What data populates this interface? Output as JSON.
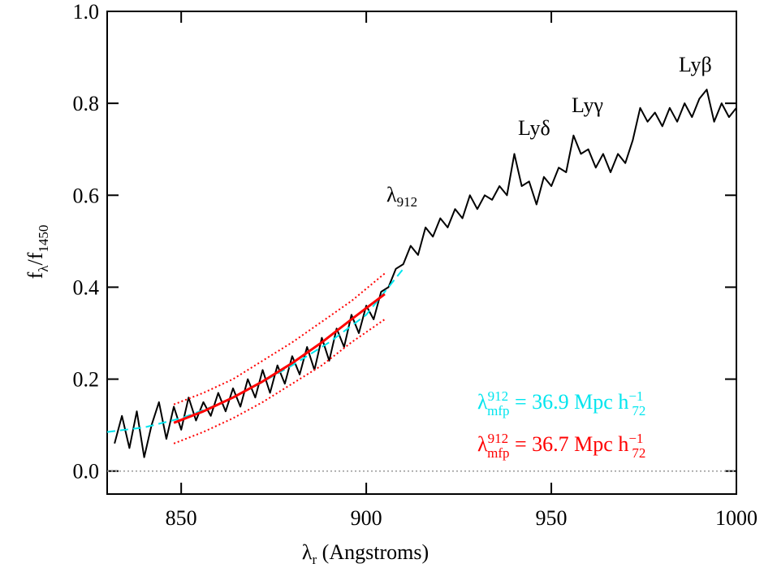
{
  "chart_data": {
    "type": "line",
    "xlabel": [
      "λ",
      "r",
      " (Angstroms)"
    ],
    "ylabel": [
      "f",
      "λ",
      "/f",
      "1450"
    ],
    "xlim": [
      830,
      1000
    ],
    "ylim": [
      -0.05,
      1.0
    ],
    "xticks": [
      850,
      900,
      950,
      1000
    ],
    "yticks": [
      {
        "value": 0,
        "label": "0.0"
      },
      0.2,
      0.4,
      0.6,
      0.8,
      {
        "value": 1,
        "label": "1.0"
      }
    ],
    "reference_line": {
      "value": 0,
      "color": "#999999",
      "style": "dotted"
    },
    "series": [
      {
        "color": "#000000",
        "style": "solid",
        "width": 2,
        "x": [
          832,
          834,
          836,
          838,
          840,
          842,
          844,
          846,
          848,
          850,
          852,
          854,
          856,
          858,
          860,
          862,
          864,
          866,
          868,
          870,
          872,
          874,
          876,
          878,
          880,
          882,
          884,
          886,
          888,
          890,
          892,
          894,
          896,
          898,
          900,
          902,
          904,
          906,
          908,
          910,
          912,
          914,
          916,
          918,
          920,
          922,
          924,
          926,
          928,
          930,
          932,
          934,
          936,
          938,
          940,
          942,
          944,
          946,
          948,
          950,
          952,
          954,
          956,
          958,
          960,
          962,
          964,
          966,
          968,
          970,
          972,
          974,
          976,
          978,
          980,
          982,
          984,
          986,
          988,
          990,
          992,
          994,
          996,
          998,
          1000
        ],
        "values": [
          0.06,
          0.12,
          0.05,
          0.13,
          0.03,
          0.1,
          0.15,
          0.07,
          0.14,
          0.09,
          0.16,
          0.11,
          0.15,
          0.12,
          0.17,
          0.13,
          0.18,
          0.14,
          0.2,
          0.16,
          0.22,
          0.17,
          0.23,
          0.19,
          0.25,
          0.21,
          0.27,
          0.22,
          0.29,
          0.24,
          0.31,
          0.27,
          0.34,
          0.3,
          0.36,
          0.33,
          0.39,
          0.4,
          0.44,
          0.45,
          0.49,
          0.47,
          0.53,
          0.51,
          0.55,
          0.53,
          0.57,
          0.55,
          0.6,
          0.57,
          0.6,
          0.59,
          0.62,
          0.6,
          0.69,
          0.62,
          0.63,
          0.58,
          0.64,
          0.62,
          0.66,
          0.65,
          0.73,
          0.69,
          0.7,
          0.66,
          0.69,
          0.65,
          0.69,
          0.67,
          0.72,
          0.79,
          0.76,
          0.78,
          0.75,
          0.79,
          0.76,
          0.8,
          0.77,
          0.81,
          0.83,
          0.76,
          0.8,
          0.77,
          0.79
        ]
      },
      {
        "color": "#00e5ee",
        "style": "dashed",
        "width": 2,
        "x": [
          830,
          840,
          850,
          860,
          870,
          880,
          890,
          900,
          910
        ],
        "values": [
          0.085,
          0.095,
          0.115,
          0.145,
          0.185,
          0.23,
          0.28,
          0.34,
          0.44
        ]
      },
      {
        "color": "#ff0000",
        "style": "solid",
        "width": 3,
        "x": [
          848,
          856,
          864,
          872,
          880,
          888,
          896,
          905
        ],
        "values": [
          0.105,
          0.13,
          0.16,
          0.195,
          0.235,
          0.28,
          0.33,
          0.385
        ]
      },
      {
        "color": "#ff0000",
        "style": "dotted",
        "width": 2,
        "x": [
          848,
          856,
          864,
          872,
          880,
          888,
          896,
          905
        ],
        "values": [
          0.145,
          0.17,
          0.2,
          0.24,
          0.28,
          0.325,
          0.37,
          0.43
        ]
      },
      {
        "color": "#ff0000",
        "style": "dotted",
        "width": 2,
        "x": [
          848,
          856,
          864,
          872,
          880,
          888,
          896,
          905
        ],
        "values": [
          0.06,
          0.085,
          0.115,
          0.15,
          0.19,
          0.23,
          0.28,
          0.33
        ]
      }
    ],
    "annotations": [
      {
        "parts": [
          "λ",
          "912"
        ]
      },
      {
        "parts": [
          "Lyδ"
        ]
      },
      {
        "parts": [
          "Lyγ"
        ]
      },
      {
        "parts": [
          "Lyβ"
        ]
      },
      {
        "parts": [
          "λ",
          "912",
          "mfp",
          " = 36.9 Mpc h",
          "−1",
          "72"
        ],
        "color": "#00e5ee"
      },
      {
        "parts": [
          "λ",
          "912",
          "mfp",
          " = 36.7 Mpc h",
          "−1",
          "72"
        ],
        "color": "#ff0000"
      }
    ]
  }
}
